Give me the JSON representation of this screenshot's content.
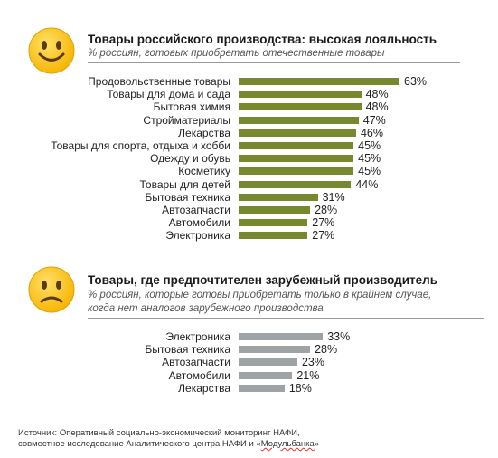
{
  "section1": {
    "title": "Товары российского производства: высокая лояльность",
    "subtitle": "% россиян, готовых приобретать отечественные товары",
    "icon": "smiling-face-icon",
    "bar_color": "#77892f"
  },
  "section2": {
    "title": "Товары, где предпочтителен зарубежный производитель",
    "subtitle_line1": "% россиян, которые готовы приобретать только в крайнем случае,",
    "subtitle_line2": "когда нет аналогов зарубежного производства",
    "icon": "frowning-face-icon",
    "bar_color": "#9ea4a5"
  },
  "source": {
    "line1": "Источник: Оперативный социально-экономический мониторинг НАФИ,",
    "line2_prefix": "совместное исследование Аналитического центра НАФИ и «",
    "line2_brand": "Модульбанка",
    "line2_suffix": "»"
  },
  "chart_data": [
    {
      "type": "bar",
      "orientation": "horizontal",
      "title": "Товары российского производства: высокая лояльность",
      "subtitle": "% россиян, готовых приобретать отечественные товары",
      "categories": [
        "Продовольственные товары",
        "Товары для дома и сада",
        "Бытовая химия",
        "Стройматериалы",
        "Лекарства",
        "Товары для спорта, отдыха и хобби",
        "Одежду и обувь",
        "Косметику",
        "Товары для детей",
        "Бытовая техника",
        "Автозапчасти",
        "Автомобили",
        "Электроника"
      ],
      "values": [
        63,
        48,
        48,
        47,
        46,
        45,
        45,
        45,
        44,
        31,
        28,
        27,
        27
      ],
      "value_labels": [
        "63%",
        "48%",
        "48%",
        "47%",
        "46%",
        "45%",
        "45%",
        "45%",
        "44%",
        "31%",
        "28%",
        "27%",
        "27%"
      ],
      "xlim": [
        0,
        63
      ],
      "grid": false,
      "legend": "none"
    },
    {
      "type": "bar",
      "orientation": "horizontal",
      "title": "Товары, где предпочтителен зарубежный производитель",
      "subtitle": "% россиян, которые готовы приобретать только в крайнем случае, когда нет аналогов зарубежного производства",
      "categories": [
        "Электроника",
        "Бытовая техника",
        "Автозапчасти",
        "Автомобили",
        "Лекарства"
      ],
      "values": [
        33,
        28,
        23,
        21,
        18
      ],
      "value_labels": [
        "33%",
        "28%",
        "23%",
        "21%",
        "18%"
      ],
      "xlim": [
        0,
        63
      ],
      "grid": false,
      "legend": "none"
    }
  ]
}
